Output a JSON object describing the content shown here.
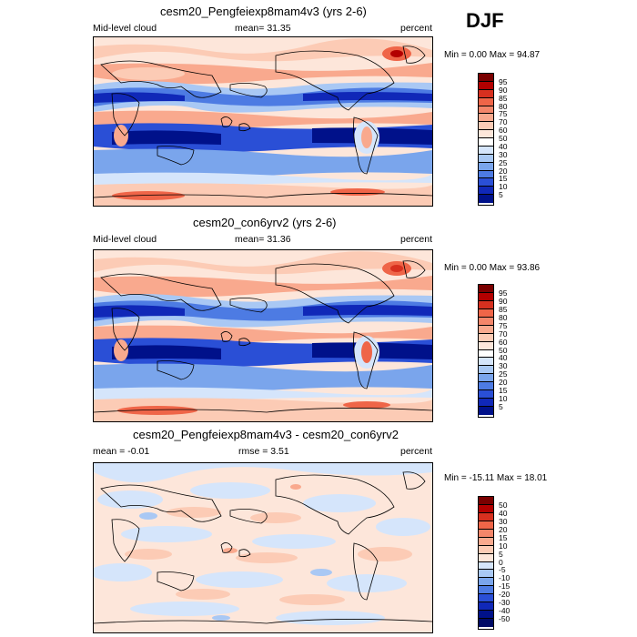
{
  "figure": {
    "season": "DJF",
    "panels": [
      {
        "title": "cesm20_Pengfeiexp8mam4v3 (yrs 2-6)",
        "left_label": "Mid-level cloud",
        "center_label": "mean=  31.35",
        "right_label": "percent",
        "minmax": "Min =   0.00 Max =  94.87",
        "field": "absolute"
      },
      {
        "title": "cesm20_con6yrv2 (yrs 2-6)",
        "left_label": "Mid-level cloud",
        "center_label": "mean=  31.36",
        "right_label": "percent",
        "minmax": "Min =   0.00 Max =  93.86",
        "field": "absolute"
      },
      {
        "title": "cesm20_Pengfeiexp8mam4v3 - cesm20_con6yrv2",
        "left_label": "mean =  -0.01",
        "center_label": "rmse =   3.51",
        "right_label": "percent",
        "minmax": "Min = -15.11 Max =  18.01",
        "field": "difference"
      }
    ],
    "colorbar_abs": {
      "labels": [
        "95",
        "90",
        "85",
        "80",
        "75",
        "70",
        "60",
        "50",
        "40",
        "30",
        "25",
        "20",
        "15",
        "10",
        "5"
      ],
      "colors": [
        "#7a0000",
        "#b30000",
        "#d7301f",
        "#ef6548",
        "#f4866a",
        "#f9a98e",
        "#fccbb5",
        "#fde6da",
        "#ffffff",
        "#d5e5fb",
        "#a9c8f4",
        "#7aa5ec",
        "#4d7be3",
        "#2a4fd6",
        "#1028b8",
        "#00118a"
      ]
    },
    "colorbar_diff": {
      "labels": [
        "50",
        "40",
        "30",
        "20",
        "15",
        "10",
        "5",
        "0",
        "-5",
        "-10",
        "-15",
        "-20",
        "-30",
        "-40",
        "-50"
      ],
      "colors": [
        "#7a0000",
        "#b30000",
        "#d7301f",
        "#ef6548",
        "#f4866a",
        "#f9a98e",
        "#fccbb5",
        "#fde6da",
        "#d5e5fb",
        "#a9c8f4",
        "#7aa5ec",
        "#4d7be3",
        "#2a4fd6",
        "#1028b8",
        "#00118a",
        "#000a66"
      ]
    }
  }
}
